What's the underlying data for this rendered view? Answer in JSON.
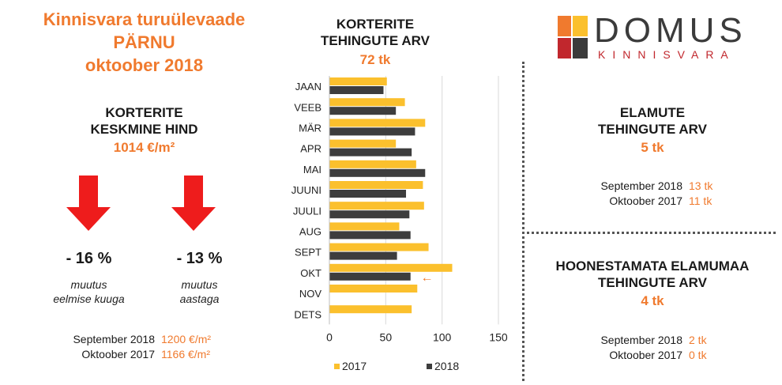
{
  "left": {
    "title_lines": [
      "Kinnisvara turuülevaade",
      "PÄRNU",
      "oktoober 2018"
    ],
    "price_heading_lines": [
      "KORTERITE",
      "KESKMINE HIND"
    ],
    "price_value": "1014 €/m²",
    "change_month": {
      "value": "- 16 %",
      "caption_lines": [
        "muutus",
        "eelmise kuuga"
      ]
    },
    "change_year": {
      "value": "- 13 %",
      "caption_lines": [
        "muutus",
        "aastaga"
      ]
    },
    "comparisons": [
      {
        "label": "September 2018",
        "value": "1200 €/m²"
      },
      {
        "label": "Oktoober 2017",
        "value": "1166 €/m²"
      }
    ]
  },
  "center": {
    "heading_lines": [
      "KORTERITE",
      "TEHINGUTE ARV"
    ],
    "total": "72 tk"
  },
  "chart_data": {
    "type": "bar",
    "orientation": "horizontal",
    "categories": [
      "JAAN",
      "VEEB",
      "MÄR",
      "APR",
      "MAI",
      "JUUNI",
      "JUULI",
      "AUG",
      "SEPT",
      "OKT",
      "NOV",
      "DETS"
    ],
    "series": [
      {
        "name": "2017",
        "color": "#fbc02d",
        "values": [
          51,
          67,
          85,
          59,
          77,
          83,
          84,
          62,
          88,
          109,
          78,
          73
        ]
      },
      {
        "name": "2018",
        "color": "#3d3d3d",
        "values": [
          48,
          59,
          76,
          73,
          85,
          68,
          71,
          72,
          60,
          72,
          null,
          null
        ]
      }
    ],
    "xlim": [
      0,
      150
    ],
    "xticks": [
      0,
      50,
      100,
      150
    ],
    "grid": true,
    "legend": "bottom",
    "highlight_category": "OKT",
    "highlight_arrow": "←"
  },
  "right_top": {
    "heading_lines": [
      "ELAMUTE",
      "TEHINGUTE ARV"
    ],
    "value": "5 tk",
    "comparisons": [
      {
        "label": "September 2018",
        "value": "13 tk"
      },
      {
        "label": "Oktoober 2017",
        "value": "11 tk"
      }
    ]
  },
  "right_bottom": {
    "heading_lines": [
      "HOONESTAMATA ELAMUMAA",
      "TEHINGUTE ARV"
    ],
    "value": "4 tk",
    "comparisons": [
      {
        "label": "September 2018",
        "value": "2 tk"
      },
      {
        "label": "Oktoober 2017",
        "value": "0 tk"
      }
    ]
  },
  "logo": {
    "name": "DOMUS",
    "subtitle": "KINNISVARA",
    "colors": [
      "#f07a2e",
      "#fbc02d",
      "#c1272d",
      "#3b3b3b"
    ]
  }
}
